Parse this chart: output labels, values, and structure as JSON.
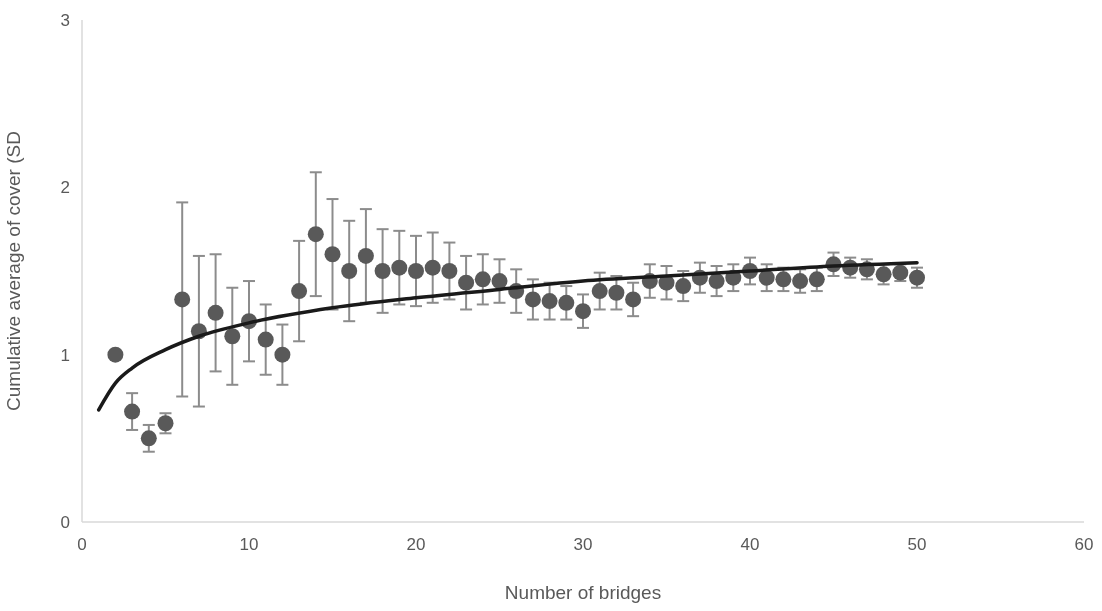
{
  "chart_data": {
    "type": "scatter",
    "xlabel": "Number of bridges",
    "ylabel": "Cumulative average of cover (SD",
    "xlim": [
      0,
      60
    ],
    "xticks": [
      0,
      10,
      20,
      30,
      40,
      50,
      60
    ],
    "ylim": [
      0,
      3
    ],
    "yticks": [
      0,
      1,
      2,
      3
    ],
    "grid": false,
    "marker": "circle",
    "series": [
      {
        "color": "#595959",
        "x": [
          2,
          3,
          4,
          5,
          6,
          7,
          8,
          9,
          10,
          11,
          12,
          13,
          14,
          15,
          16,
          17,
          18,
          19,
          20,
          21,
          22,
          23,
          24,
          25,
          26,
          27,
          28,
          29,
          30,
          31,
          32,
          33,
          34,
          35,
          36,
          37,
          38,
          39,
          40,
          41,
          42,
          43,
          44,
          45,
          46,
          47,
          48,
          49,
          50
        ],
        "values": [
          1.0,
          0.66,
          0.5,
          0.59,
          1.33,
          1.14,
          1.25,
          1.11,
          1.2,
          1.09,
          1.0,
          1.38,
          1.72,
          1.6,
          1.5,
          1.59,
          1.5,
          1.52,
          1.5,
          1.52,
          1.5,
          1.43,
          1.45,
          1.44,
          1.38,
          1.33,
          1.32,
          1.31,
          1.26,
          1.38,
          1.37,
          1.33,
          1.44,
          1.43,
          1.41,
          1.46,
          1.44,
          1.46,
          1.5,
          1.46,
          1.45,
          1.44,
          1.45,
          1.54,
          1.52,
          1.51,
          1.48,
          1.49,
          1.46
        ],
        "errors": [
          null,
          0.11,
          0.08,
          0.06,
          0.58,
          0.45,
          0.35,
          0.29,
          0.24,
          0.21,
          0.18,
          0.3,
          0.37,
          0.33,
          0.3,
          0.28,
          0.25,
          0.22,
          0.21,
          0.21,
          0.17,
          0.16,
          0.15,
          0.13,
          0.13,
          0.12,
          0.11,
          0.1,
          0.1,
          0.11,
          0.1,
          0.1,
          0.1,
          0.1,
          0.09,
          0.09,
          0.09,
          0.08,
          0.08,
          0.08,
          0.07,
          0.07,
          0.07,
          0.07,
          0.06,
          0.06,
          0.06,
          0.05,
          0.06
        ]
      },
      {
        "type": "line",
        "color": "#1a1a1a",
        "marker": "none",
        "line_style": "solid",
        "x": [
          1,
          2,
          3,
          5,
          7,
          10,
          15,
          20,
          25,
          30,
          35,
          40,
          45,
          50
        ],
        "values": [
          0.67,
          0.83,
          0.92,
          1.03,
          1.11,
          1.19,
          1.28,
          1.34,
          1.39,
          1.44,
          1.47,
          1.5,
          1.53,
          1.55
        ]
      }
    ]
  }
}
